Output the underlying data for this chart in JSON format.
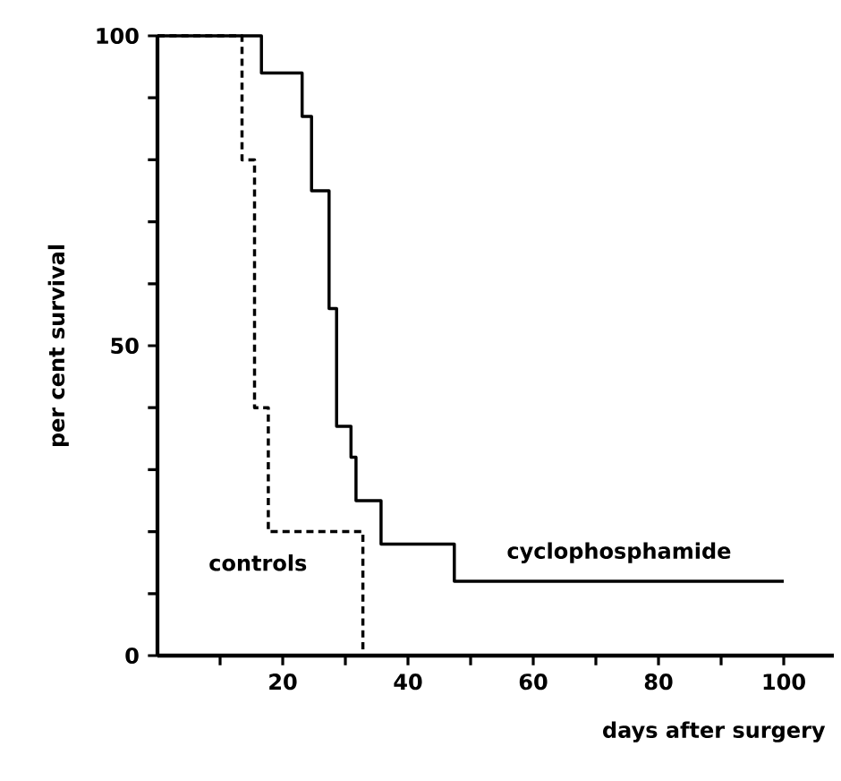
{
  "chart_data": {
    "type": "step",
    "xlabel": "days after surgery",
    "ylabel": "per cent survival",
    "xlim": [
      0,
      108
    ],
    "ylim": [
      0,
      100
    ],
    "xticks": [
      {
        "value": 10,
        "label": null
      },
      20,
      {
        "value": 30,
        "label": null
      },
      40,
      {
        "value": 50,
        "label": null
      },
      60,
      {
        "value": 70,
        "label": null
      },
      80,
      {
        "value": 90,
        "label": null
      },
      100
    ],
    "yticks": [
      0,
      {
        "value": 10,
        "label": null
      },
      {
        "value": 20,
        "label": null
      },
      {
        "value": 30,
        "label": null
      },
      {
        "value": 40,
        "label": null
      },
      50,
      {
        "value": 60,
        "label": null
      },
      {
        "value": 70,
        "label": null
      },
      {
        "value": 80,
        "label": null
      },
      {
        "value": 90,
        "label": null
      },
      100
    ],
    "marker": "none",
    "series": [
      {
        "name": "controls",
        "color": "#000000",
        "line_style": "dashed",
        "x": [
          0,
          13.5,
          15.5,
          17.7,
          32.8
        ],
        "values": [
          100,
          80,
          40,
          20,
          0
        ]
      },
      {
        "name": "cyclophosphamide",
        "color": "#000000",
        "line_style": "solid",
        "x": [
          0,
          16.6,
          23.1,
          24.6,
          27.4,
          28.6,
          30.9,
          31.7,
          35.7,
          47.4,
          100
        ],
        "values": [
          100,
          94,
          87,
          75,
          56,
          37,
          32,
          25,
          18,
          12,
          12
        ]
      }
    ]
  }
}
